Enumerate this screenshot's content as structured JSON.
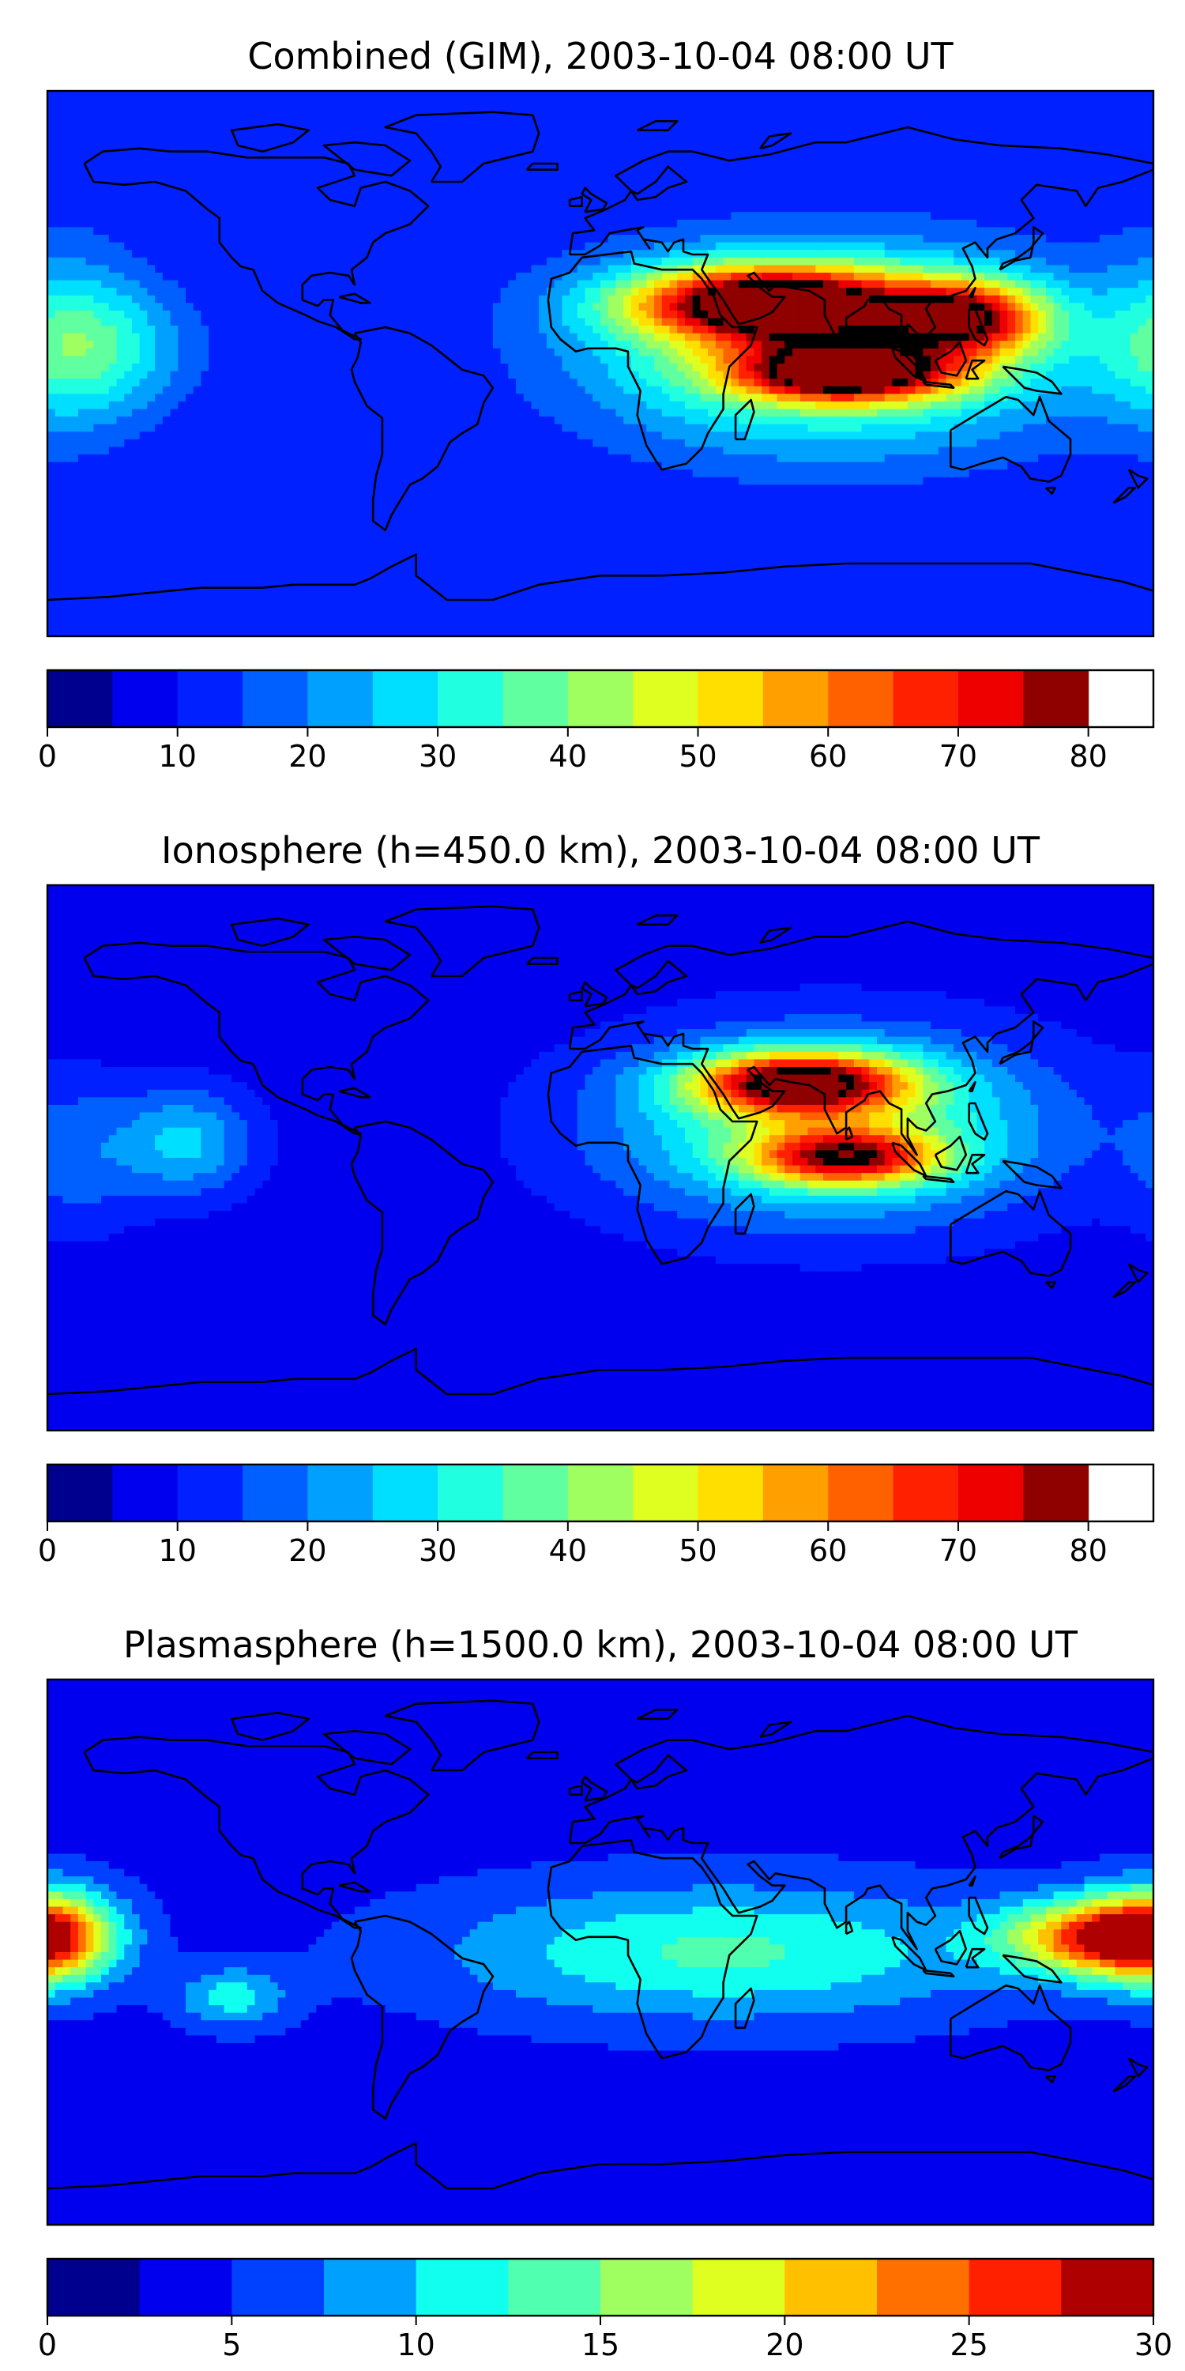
{
  "figure": {
    "panels": [
      {
        "title": "Combined (GIM), 2003-10-04 08:00 UT",
        "colorbar": {
          "min": 0,
          "max": 85,
          "step": 5,
          "ticks": [
            0,
            10,
            20,
            30,
            40,
            50,
            60,
            70,
            80
          ],
          "tick_labels": [
            "0",
            "10",
            "20",
            "30",
            "40",
            "50",
            "60",
            "70",
            "80"
          ]
        }
      },
      {
        "title": "Ionosphere  (h=450.0 km), 2003-10-04 08:00 UT",
        "colorbar": {
          "min": 0,
          "max": 85,
          "step": 5,
          "ticks": [
            0,
            10,
            20,
            30,
            40,
            50,
            60,
            70,
            80
          ],
          "tick_labels": [
            "0",
            "10",
            "20",
            "30",
            "40",
            "50",
            "60",
            "70",
            "80"
          ]
        }
      },
      {
        "title": "Plasmasphere (h=1500.0 km), 2003-10-04 08:00 UT",
        "colorbar": {
          "min": 0,
          "max": 30,
          "step": 2.5,
          "ticks": [
            0,
            5,
            10,
            15,
            20,
            25,
            30
          ],
          "tick_labels": [
            "0",
            "5",
            "10",
            "15",
            "20",
            "25",
            "30"
          ]
        }
      }
    ]
  },
  "chart_data": [
    {
      "type": "heatmap",
      "title": "Combined (GIM), 2003-10-04 08:00 UT",
      "xlabel": "",
      "ylabel": "",
      "map": "world coastlines, equirectangular projection",
      "x_range": [
        -180,
        180
      ],
      "y_range": [
        -90,
        90
      ],
      "levels": [
        0,
        5,
        10,
        15,
        20,
        25,
        30,
        35,
        40,
        45,
        50,
        55,
        60,
        65,
        70,
        75,
        80,
        85
      ],
      "colormap": [
        "#00008f",
        "#0000ef",
        "#0020ff",
        "#0060ff",
        "#00a0ff",
        "#00dfff",
        "#20ffdf",
        "#60ffa0",
        "#a0ff60",
        "#dfff20",
        "#ffdf00",
        "#ffa000",
        "#ff6000",
        "#ff2000",
        "#ef0000",
        "#8f0000"
      ],
      "background_level": 10,
      "features": [
        {
          "lon": 55,
          "lat": 20,
          "value": 78,
          "spread_lon": 45,
          "spread_lat": 12
        },
        {
          "lon": 120,
          "lat": 15,
          "value": 60,
          "spread_lon": 25,
          "spread_lat": 12
        },
        {
          "lon": 80,
          "lat": -3,
          "value": 70,
          "spread_lon": 35,
          "spread_lat": 9
        },
        {
          "lon": 75,
          "lat": 5,
          "value": 48,
          "spread_lon": 75,
          "spread_lat": 32
        },
        {
          "lon": -165,
          "lat": 5,
          "value": 30,
          "spread_lon": 30,
          "spread_lat": 22
        },
        {
          "lon": -175,
          "lat": 10,
          "value": 18,
          "spread_lon": 25,
          "spread_lat": 40
        }
      ]
    },
    {
      "type": "heatmap",
      "title": "Ionosphere  (h=450.0 km), 2003-10-04 08:00 UT",
      "xlabel": "",
      "ylabel": "",
      "map": "world coastlines, equirectangular projection",
      "x_range": [
        -180,
        180
      ],
      "y_range": [
        -90,
        90
      ],
      "levels": [
        0,
        5,
        10,
        15,
        20,
        25,
        30,
        35,
        40,
        45,
        50,
        55,
        60,
        65,
        70,
        75,
        80,
        85
      ],
      "colormap": [
        "#00008f",
        "#0000ef",
        "#0020ff",
        "#0060ff",
        "#00a0ff",
        "#00dfff",
        "#20ffdf",
        "#60ffa0",
        "#a0ff60",
        "#dfff20",
        "#ffdf00",
        "#ffa000",
        "#ff6000",
        "#ff2000",
        "#ef0000",
        "#8f0000"
      ],
      "background_level": 7,
      "features": [
        {
          "lon": 65,
          "lat": 25,
          "value": 70,
          "spread_lon": 35,
          "spread_lat": 10
        },
        {
          "lon": 80,
          "lat": 0,
          "value": 56,
          "spread_lon": 30,
          "spread_lat": 9
        },
        {
          "lon": 75,
          "lat": 10,
          "value": 40,
          "spread_lon": 70,
          "spread_lat": 30
        },
        {
          "lon": -135,
          "lat": 5,
          "value": 26,
          "spread_lon": 22,
          "spread_lat": 18
        },
        {
          "lon": -170,
          "lat": 0,
          "value": 16,
          "spread_lon": 20,
          "spread_lat": 25
        }
      ]
    },
    {
      "type": "heatmap",
      "title": "Plasmasphere (h=1500.0 km), 2003-10-04 08:00 UT",
      "xlabel": "",
      "ylabel": "",
      "map": "world coastlines, equirectangular projection",
      "x_range": [
        -180,
        180
      ],
      "y_range": [
        -90,
        90
      ],
      "levels": [
        0,
        2.5,
        5,
        7.5,
        10,
        12.5,
        15,
        17.5,
        20,
        22.5,
        25,
        27.5,
        30
      ],
      "colormap": [
        "#00008f",
        "#0000ef",
        "#0040ff",
        "#00a0ff",
        "#10ffef",
        "#50ffaf",
        "#9fff60",
        "#dfff20",
        "#ffc000",
        "#ff7000",
        "#ff2000",
        "#af0000"
      ],
      "background_level": 4,
      "features": [
        {
          "lon": -180,
          "lat": 5,
          "value": 22,
          "spread_lon": 22,
          "spread_lat": 16
        },
        {
          "lon": 160,
          "lat": 5,
          "value": 22,
          "spread_lon": 30,
          "spread_lat": 12
        },
        {
          "lon": 40,
          "lat": 0,
          "value": 13,
          "spread_lon": 90,
          "spread_lat": 22
        },
        {
          "lon": -120,
          "lat": -15,
          "value": 11,
          "spread_lon": 18,
          "spread_lat": 10
        }
      ]
    }
  ]
}
